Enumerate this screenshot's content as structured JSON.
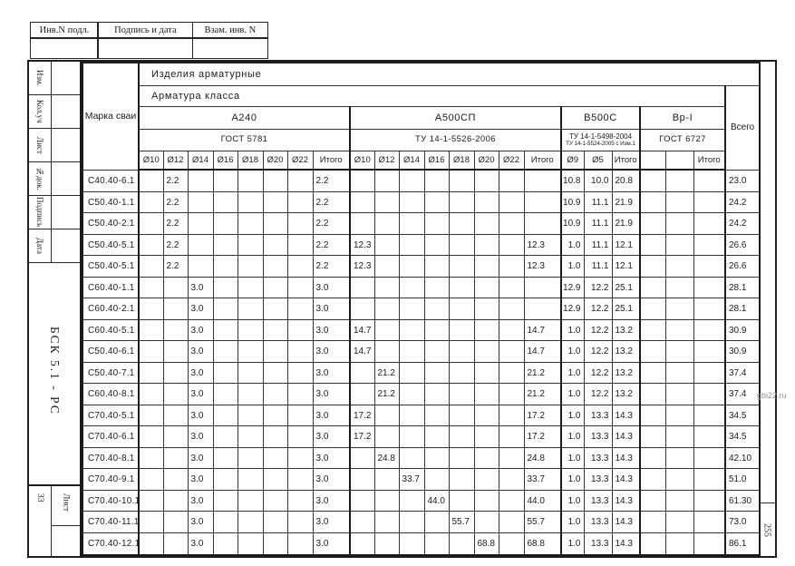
{
  "page": {
    "watermark": "gbi22.ru",
    "page_number": "255"
  },
  "top_stamp": {
    "cells": [
      "Инв.N подл.",
      "Подпись и дата",
      "Взам. инв. N"
    ]
  },
  "side_stamp": {
    "labels": [
      "Изм.",
      "Кол.уч",
      "Лист",
      "№док.",
      "Подпись",
      "Дата"
    ],
    "doc_code": "БСК 5.1 - РС",
    "sheet_number": "33",
    "sheet_label": "Лист"
  },
  "table": {
    "corner_label": "Марка сваи",
    "title": "Изделия арматурные",
    "subtitle": "Арматура класса",
    "total_label": "Всего",
    "groups": [
      {
        "name": "А240",
        "standard_lines": [
          "ГОСТ 5781"
        ],
        "columns": [
          "Ø10",
          "Ø12",
          "Ø14",
          "Ø16",
          "Ø18",
          "Ø20",
          "Ø22",
          "Итого"
        ]
      },
      {
        "name": "А500СП",
        "standard_lines": [
          "ТУ 14-1-5526-2006"
        ],
        "columns": [
          "Ø10",
          "Ø12",
          "Ø14",
          "Ø16",
          "Ø18",
          "Ø20",
          "Ø22",
          "Итого"
        ]
      },
      {
        "name": "В500С",
        "standard_lines": [
          "ТУ 14-1-5498-2004",
          "ТУ 14-1-5524-2005 с Изм.1"
        ],
        "columns": [
          "Ø9",
          "Ø5",
          "Итого"
        ]
      },
      {
        "name": "Вр-I",
        "standard_lines": [
          "ГОСТ 6727"
        ],
        "columns": [
          "",
          "",
          "Итого"
        ]
      }
    ],
    "rows": [
      {
        "mark": "С40.40-6.1",
        "cells": [
          "",
          "2.2",
          "",
          "",
          "",
          "",
          "",
          "2.2",
          "",
          "",
          "",
          "",
          "",
          "",
          "",
          "",
          "10.8",
          "10.0",
          "20.8",
          "",
          "",
          "",
          "23.0"
        ]
      },
      {
        "mark": "С50.40-1.1",
        "cells": [
          "",
          "2.2",
          "",
          "",
          "",
          "",
          "",
          "2.2",
          "",
          "",
          "",
          "",
          "",
          "",
          "",
          "",
          "10.9",
          "11.1",
          "21.9",
          "",
          "",
          "",
          "24.2"
        ]
      },
      {
        "mark": "С50.40-2.1",
        "cells": [
          "",
          "2.2",
          "",
          "",
          "",
          "",
          "",
          "2.2",
          "",
          "",
          "",
          "",
          "",
          "",
          "",
          "",
          "10.9",
          "11.1",
          "21.9",
          "",
          "",
          "",
          "24.2"
        ]
      },
      {
        "mark": "С50.40-5.1",
        "cells": [
          "",
          "2.2",
          "",
          "",
          "",
          "",
          "",
          "2.2",
          "12.3",
          "",
          "",
          "",
          "",
          "",
          "",
          "12.3",
          "1.0",
          "11.1",
          "12.1",
          "",
          "",
          "",
          "26.6"
        ]
      },
      {
        "mark": "С50.40-5.1",
        "cells": [
          "",
          "2.2",
          "",
          "",
          "",
          "",
          "",
          "2.2",
          "12.3",
          "",
          "",
          "",
          "",
          "",
          "",
          "12.3",
          "1.0",
          "11.1",
          "12.1",
          "",
          "",
          "",
          "26.6"
        ]
      },
      {
        "mark": "С60.40-1.1",
        "cells": [
          "",
          "",
          "3.0",
          "",
          "",
          "",
          "",
          "3.0",
          "",
          "",
          "",
          "",
          "",
          "",
          "",
          "",
          "12.9",
          "12.2",
          "25.1",
          "",
          "",
          "",
          "28.1"
        ]
      },
      {
        "mark": "С60.40-2.1",
        "cells": [
          "",
          "",
          "3.0",
          "",
          "",
          "",
          "",
          "3.0",
          "",
          "",
          "",
          "",
          "",
          "",
          "",
          "",
          "12.9",
          "12.2",
          "25.1",
          "",
          "",
          "",
          "28.1"
        ]
      },
      {
        "mark": "С60.40-5.1",
        "cells": [
          "",
          "",
          "3.0",
          "",
          "",
          "",
          "",
          "3.0",
          "14.7",
          "",
          "",
          "",
          "",
          "",
          "",
          "14.7",
          "1.0",
          "12.2",
          "13.2",
          "",
          "",
          "",
          "30.9"
        ]
      },
      {
        "mark": "С50.40-6.1",
        "cells": [
          "",
          "",
          "3.0",
          "",
          "",
          "",
          "",
          "3.0",
          "14.7",
          "",
          "",
          "",
          "",
          "",
          "",
          "14.7",
          "1.0",
          "12.2",
          "13.2",
          "",
          "",
          "",
          "30.9"
        ]
      },
      {
        "mark": "С50.40-7.1",
        "cells": [
          "",
          "",
          "3.0",
          "",
          "",
          "",
          "",
          "3.0",
          "",
          "21.2",
          "",
          "",
          "",
          "",
          "",
          "21.2",
          "1.0",
          "12.2",
          "13.2",
          "",
          "",
          "",
          "37.4"
        ]
      },
      {
        "mark": "С60.40-8.1",
        "cells": [
          "",
          "",
          "3.0",
          "",
          "",
          "",
          "",
          "3.0",
          "",
          "21.2",
          "",
          "",
          "",
          "",
          "",
          "21.2",
          "1.0",
          "12.2",
          "13.2",
          "",
          "",
          "",
          "37.4"
        ]
      },
      {
        "mark": "С70.40-5.1",
        "cells": [
          "",
          "",
          "3.0",
          "",
          "",
          "",
          "",
          "3.0",
          "17.2",
          "",
          "",
          "",
          "",
          "",
          "",
          "17.2",
          "1.0",
          "13.3",
          "14.3",
          "",
          "",
          "",
          "34.5"
        ]
      },
      {
        "mark": "С70.40-6.1",
        "cells": [
          "",
          "",
          "3.0",
          "",
          "",
          "",
          "",
          "3.0",
          "17.2",
          "",
          "",
          "",
          "",
          "",
          "",
          "17.2",
          "1.0",
          "13.3",
          "14.3",
          "",
          "",
          "",
          "34.5"
        ]
      },
      {
        "mark": "С70.40-8.1",
        "cells": [
          "",
          "",
          "3.0",
          "",
          "",
          "",
          "",
          "3.0",
          "",
          "24.8",
          "",
          "",
          "",
          "",
          "",
          "24.8",
          "1.0",
          "13.3",
          "14.3",
          "",
          "",
          "",
          "42.10"
        ]
      },
      {
        "mark": "С70.40-9.1",
        "cells": [
          "",
          "",
          "3.0",
          "",
          "",
          "",
          "",
          "3.0",
          "",
          "",
          "33.7",
          "",
          "",
          "",
          "",
          "33.7",
          "1.0",
          "13.3",
          "14.3",
          "",
          "",
          "",
          "51.0"
        ]
      },
      {
        "mark": "С70.40-10.1",
        "cells": [
          "",
          "",
          "3.0",
          "",
          "",
          "",
          "",
          "3.0",
          "",
          "",
          "",
          "44.0",
          "",
          "",
          "",
          "44.0",
          "1.0",
          "13.3",
          "14.3",
          "",
          "",
          "",
          "61.30"
        ]
      },
      {
        "mark": "С70.40-11.1",
        "cells": [
          "",
          "",
          "3.0",
          "",
          "",
          "",
          "",
          "3.0",
          "",
          "",
          "",
          "",
          "55.7",
          "",
          "",
          "55.7",
          "1.0",
          "13.3",
          "14.3",
          "",
          "",
          "",
          "73.0"
        ]
      },
      {
        "mark": "С70.40-12.1",
        "cells": [
          "",
          "",
          "3.0",
          "",
          "",
          "",
          "",
          "3.0",
          "",
          "",
          "",
          "",
          "",
          "68.8",
          "",
          "68.8",
          "1.0",
          "13.3",
          "14.3",
          "",
          "",
          "",
          "86.1"
        ]
      }
    ]
  }
}
